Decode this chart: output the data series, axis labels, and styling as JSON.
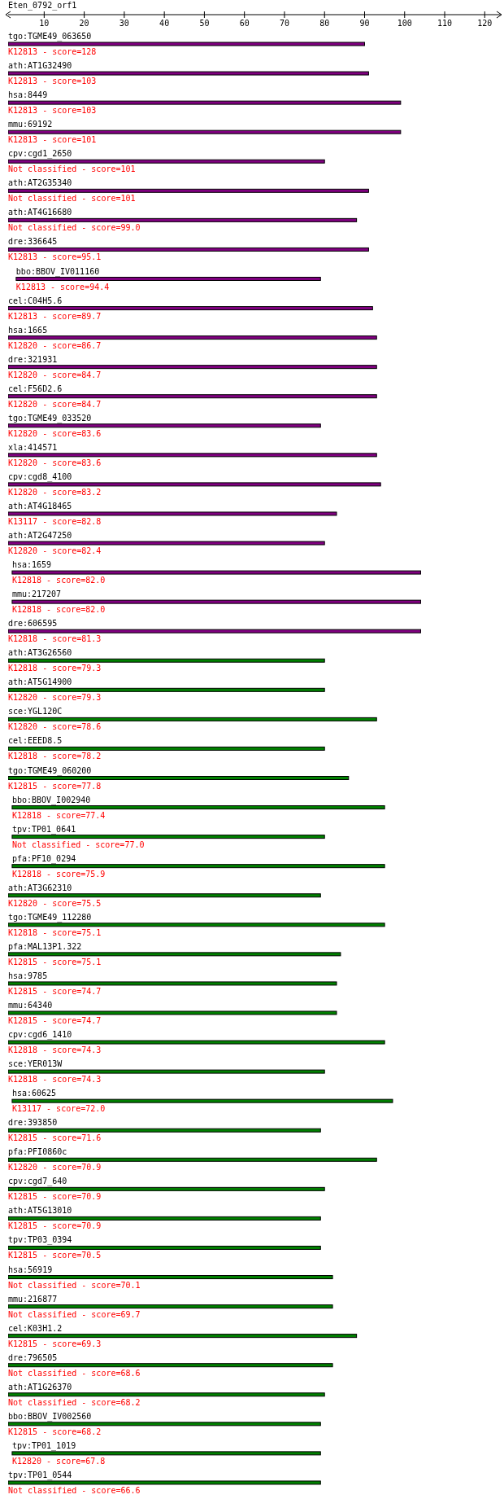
{
  "chart_data": {
    "type": "bar",
    "orientation": "horizontal",
    "title": "Eten_0792_orf1",
    "categories": [
      "tgo:TGME49_063650",
      "ath:AT1G32490",
      "hsa:8449",
      "mmu:69192",
      "cpv:cgd1_2650",
      "ath:AT2G35340",
      "ath:AT4G16680",
      "dre:336645",
      "bbo:BBOV_IV011160",
      "cel:C04H5.6",
      "hsa:1665",
      "dre:321931",
      "cel:F56D2.6",
      "tgo:TGME49_033520",
      "xla:414571",
      "cpv:cgd8_4100",
      "ath:AT4G18465",
      "ath:AT2G47250",
      "hsa:1659",
      "mmu:217207",
      "dre:606595",
      "ath:AT3G26560",
      "ath:AT5G14900",
      "sce:YGL120C",
      "cel:EEED8.5",
      "tgo:TGME49_060200",
      "bbo:BBOV_I002940",
      "tpv:TP01_0641",
      "pfa:PF10_0294",
      "ath:AT3G62310",
      "tgo:TGME49_112280",
      "pfa:MAL13P1.322",
      "hsa:9785",
      "mmu:64340",
      "cpv:cgd6_1410",
      "sce:YER013W",
      "hsa:60625",
      "dre:393850",
      "pfa:PFI0860c",
      "cpv:cgd7_640",
      "ath:AT5G13010",
      "tpv:TP03_0394",
      "hsa:56919",
      "mmu:216877",
      "cel:K03H1.2",
      "dre:796505",
      "ath:AT1G26370",
      "bbo:BBOV_IV002560",
      "tpv:TP01_1019",
      "tpv:TP01_0544"
    ],
    "base": [
      1,
      1,
      1,
      1,
      1,
      1,
      1,
      1,
      3,
      1,
      1,
      1,
      1,
      1,
      1,
      1,
      1,
      1,
      2,
      2,
      1,
      1,
      1,
      1,
      1,
      1,
      2,
      2,
      2,
      1,
      1,
      1,
      1,
      1,
      1,
      1,
      2,
      1,
      1,
      1,
      1,
      1,
      1,
      1,
      1,
      1,
      1,
      1,
      2,
      1
    ],
    "values": [
      89,
      90,
      98,
      98,
      79,
      90,
      87,
      90,
      76,
      91,
      92,
      92,
      92,
      78,
      92,
      93,
      82,
      79,
      102,
      102,
      103,
      79,
      79,
      92,
      79,
      85,
      93,
      78,
      93,
      78,
      94,
      83,
      82,
      82,
      94,
      79,
      95,
      78,
      92,
      79,
      78,
      78,
      81,
      81,
      87,
      81,
      79,
      78,
      77,
      78
    ],
    "colors": [
      "#800080",
      "#800080",
      "#800080",
      "#800080",
      "#800080",
      "#800080",
      "#800080",
      "#800080",
      "#800080",
      "#800080",
      "#800080",
      "#800080",
      "#800080",
      "#800080",
      "#800080",
      "#800080",
      "#800080",
      "#800080",
      "#800080",
      "#800080",
      "#800080",
      "#008000",
      "#008000",
      "#008000",
      "#008000",
      "#008000",
      "#008000",
      "#008000",
      "#008000",
      "#008000",
      "#008000",
      "#008000",
      "#008000",
      "#008000",
      "#008000",
      "#008000",
      "#008000",
      "#008000",
      "#008000",
      "#008000",
      "#008000",
      "#008000",
      "#008000",
      "#008000",
      "#008000",
      "#008000",
      "#008000",
      "#008000",
      "#008000",
      "#008000"
    ],
    "xlim": [
      1,
      124
    ],
    "xticks": [
      10,
      20,
      30,
      40,
      50,
      60,
      70,
      80,
      90,
      100,
      110,
      120
    ],
    "annotations": [
      "K12813 - score=128",
      "K12813 - score=103",
      "K12813 - score=103",
      "K12813 - score=101",
      "Not classified - score=101",
      "Not classified - score=101",
      "Not classified - score=99.0",
      "K12813 - score=95.1",
      "K12813 - score=94.4",
      "K12813 - score=89.7",
      "K12820 - score=86.7",
      "K12820 - score=84.7",
      "K12820 - score=84.7",
      "K12820 - score=83.6",
      "K12820 - score=83.6",
      "K12820 - score=83.2",
      "K13117 - score=82.8",
      "K12820 - score=82.4",
      "K12818 - score=82.0",
      "K12818 - score=82.0",
      "K12818 - score=81.3",
      "K12818 - score=79.3",
      "K12820 - score=79.3",
      "K12820 - score=78.6",
      "K12818 - score=78.2",
      "K12815 - score=77.8",
      "K12818 - score=77.4",
      "Not classified - score=77.0",
      "K12818 - score=75.9",
      "K12820 - score=75.5",
      "K12818 - score=75.1",
      "K12815 - score=75.1",
      "K12815 - score=74.7",
      "K12815 - score=74.7",
      "K12818 - score=74.3",
      "K12818 - score=74.3",
      "K13117 - score=72.0",
      "K12815 - score=71.6",
      "K12820 - score=70.9",
      "K12815 - score=70.9",
      "K12815 - score=70.9",
      "K12815 - score=70.5",
      "Not classified - score=70.1",
      "Not classified - score=69.7",
      "K12815 - score=69.3",
      "Not classified - score=68.6",
      "Not classified - score=68.2",
      "K12815 - score=68.2",
      "K12820 - score=67.8",
      "Not classified - score=66.6"
    ]
  }
}
